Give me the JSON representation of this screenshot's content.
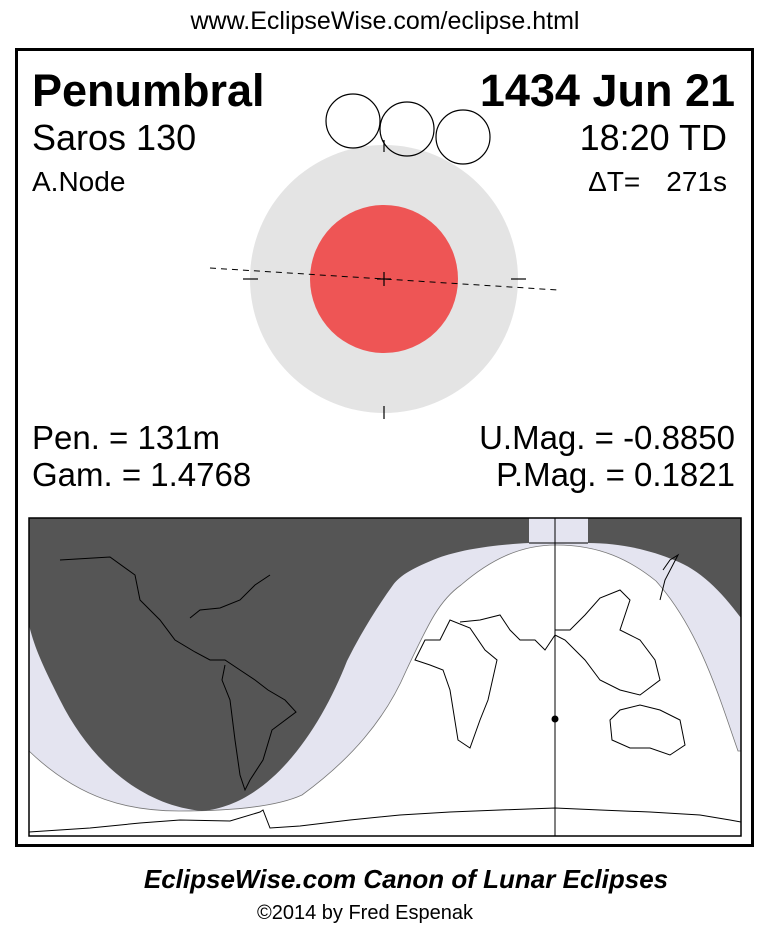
{
  "url": "www.EclipseWise.com/eclipse.html",
  "eclipse": {
    "type": "Penumbral",
    "date": "1434 Jun 21",
    "saros": "Saros 130",
    "time": "18:20 TD",
    "node": "A.Node",
    "delta_t_label": "ΔT=",
    "delta_t_value": "271s",
    "pen_duration": "Pen. = 131m",
    "gamma": "Gam. = 1.4768",
    "umbral_mag": "U.Mag. = -0.8850",
    "penumbral_mag": "P.Mag. = 0.1821"
  },
  "colors": {
    "umbra": "#ee5555",
    "penumbra": "#e4e4e4",
    "night": "#555555",
    "penumbral_zone": "#e4e4f0"
  },
  "footer": {
    "title": "EclipseWise.com Canon of Lunar Eclipses",
    "copyright": "©2014 by Fred Espenak"
  }
}
